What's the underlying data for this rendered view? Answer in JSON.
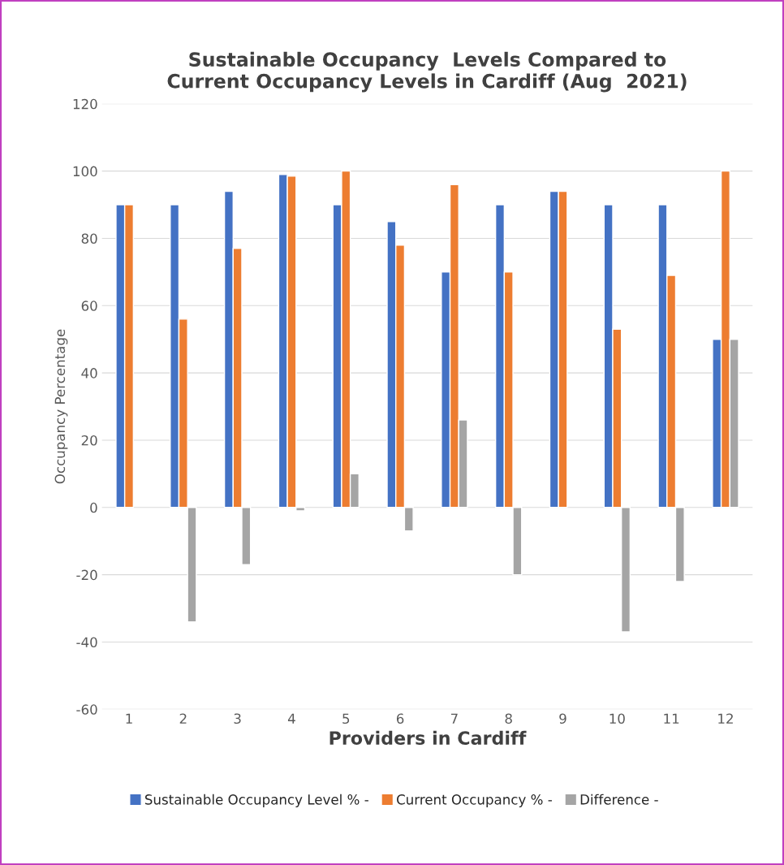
{
  "chart_data": {
    "type": "bar",
    "title": "Sustainable Occupancy  Levels Compared to\nCurrent Occupancy Levels in Cardiff (Aug  2021)",
    "xlabel": "Providers in Cardiff",
    "ylabel": "Occupancy Percentage",
    "categories": [
      "1",
      "2",
      "3",
      "4",
      "5",
      "6",
      "7",
      "8",
      "9",
      "10",
      "11",
      "12"
    ],
    "series": [
      {
        "name": "Sustainable Occupancy Level % -",
        "color": "#4472c4",
        "values": [
          90,
          90,
          94,
          99,
          90,
          85,
          70,
          90,
          94,
          90,
          90,
          50
        ]
      },
      {
        "name": "Current Occupancy % -",
        "color": "#ed7d31",
        "values": [
          90,
          56,
          77,
          98.5,
          100,
          78,
          96,
          70,
          94,
          53,
          69,
          100
        ]
      },
      {
        "name": "Difference -",
        "color": "#a5a5a5",
        "values": [
          null,
          -34,
          -17,
          -1,
          10,
          -7,
          26,
          -20,
          null,
          -37,
          -22,
          50
        ]
      }
    ],
    "ylim": [
      -60,
      120
    ],
    "yticks": [
      -60,
      -40,
      -20,
      0,
      20,
      40,
      60,
      80,
      100,
      120
    ],
    "grid": "y",
    "legend": "bottom"
  }
}
